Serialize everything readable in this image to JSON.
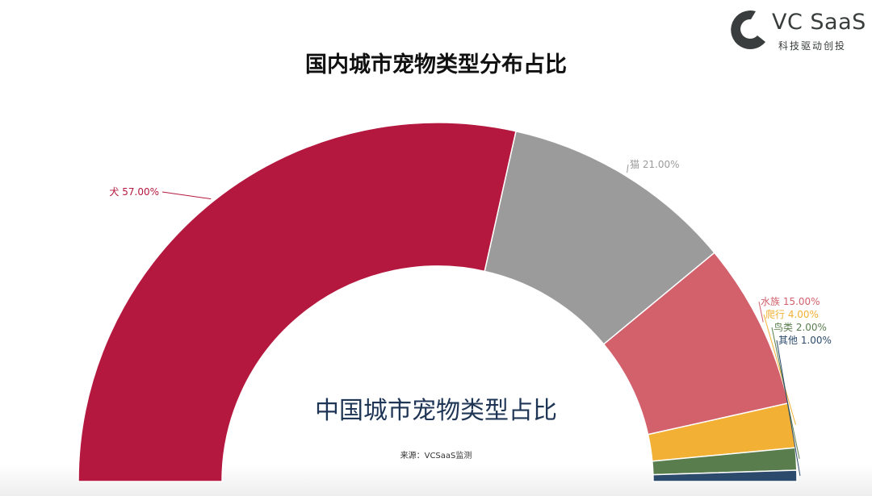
{
  "logo": {
    "text": "VC SaaS",
    "subtitle": "科技驱动创投"
  },
  "chart_data": {
    "type": "pie",
    "variant": "half-donut",
    "title": "国内城市宠物类型分布占比",
    "center_label": "中国城市宠物类型占比",
    "source": "来源：VCSaaS监测",
    "slices": [
      {
        "name": "犬",
        "value": 57.0,
        "label": "犬 57.00%",
        "color": "#B5183E"
      },
      {
        "name": "猫",
        "value": 21.0,
        "label": "猫 21.00%",
        "color": "#9B9B9B"
      },
      {
        "name": "水族",
        "value": 15.0,
        "label": "水族 15.00%",
        "color": "#D2616C"
      },
      {
        "name": "爬行",
        "value": 4.0,
        "label": "爬行 4.00%",
        "color": "#F2B134"
      },
      {
        "name": "鸟类",
        "value": 2.0,
        "label": "鸟类 2.00%",
        "color": "#5A7D4E"
      },
      {
        "name": "其他",
        "value": 1.0,
        "label": "其他 1.00%",
        "color": "#2C4A6B"
      }
    ]
  }
}
